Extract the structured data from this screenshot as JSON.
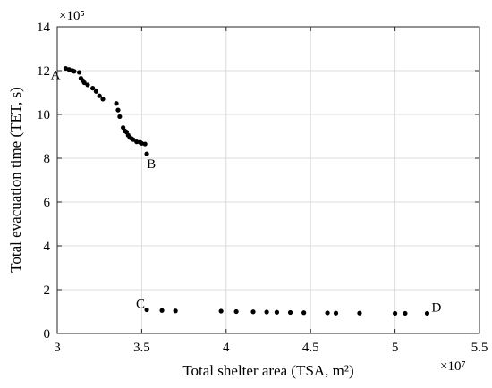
{
  "chart_data": {
    "type": "scatter",
    "title": "",
    "xlabel": "Total shelter area (TSA, m²)",
    "ylabel": "Total evacuation time (TET, s)",
    "x_exponent_label": "×10⁷",
    "y_exponent_label": "×10⁵",
    "x_multiplier": 10000000,
    "y_multiplier": 100000,
    "xlim": [
      3,
      5.5
    ],
    "ylim": [
      0,
      14
    ],
    "x_ticks": [
      3,
      3.5,
      4,
      4.5,
      5,
      5.5
    ],
    "x_tick_labels": [
      "3",
      "3.5",
      "4",
      "4.5",
      "5",
      "5.5"
    ],
    "y_ticks": [
      0,
      2,
      4,
      6,
      8,
      10,
      12,
      14
    ],
    "y_tick_labels": [
      "0",
      "2",
      "4",
      "6",
      "8",
      "10",
      "12",
      "14"
    ],
    "grid": true,
    "series": [
      {
        "points": [
          [
            3.05,
            12.1
          ],
          [
            3.07,
            12.05
          ],
          [
            3.09,
            12.0
          ],
          [
            3.1,
            11.97
          ],
          [
            3.13,
            11.92
          ],
          [
            3.14,
            11.65
          ],
          [
            3.15,
            11.55
          ],
          [
            3.16,
            11.45
          ],
          [
            3.18,
            11.35
          ],
          [
            3.21,
            11.2
          ],
          [
            3.23,
            11.05
          ],
          [
            3.25,
            10.85
          ],
          [
            3.27,
            10.7
          ],
          [
            3.35,
            10.5
          ],
          [
            3.36,
            10.2
          ],
          [
            3.37,
            9.9
          ],
          [
            3.39,
            9.4
          ],
          [
            3.4,
            9.25
          ],
          [
            3.41,
            9.2
          ],
          [
            3.42,
            9.05
          ],
          [
            3.43,
            8.95
          ],
          [
            3.44,
            8.9
          ],
          [
            3.45,
            8.85
          ],
          [
            3.47,
            8.75
          ],
          [
            3.49,
            8.73
          ],
          [
            3.5,
            8.68
          ],
          [
            3.52,
            8.65
          ],
          [
            3.53,
            8.2
          ],
          [
            3.53,
            1.08
          ],
          [
            3.62,
            1.05
          ],
          [
            3.7,
            1.03
          ],
          [
            3.97,
            1.02
          ],
          [
            4.06,
            1.0
          ],
          [
            4.16,
            0.99
          ],
          [
            4.24,
            0.98
          ],
          [
            4.3,
            0.97
          ],
          [
            4.38,
            0.96
          ],
          [
            4.46,
            0.95
          ],
          [
            4.6,
            0.94
          ],
          [
            4.65,
            0.93
          ],
          [
            4.79,
            0.93
          ],
          [
            5.0,
            0.92
          ],
          [
            5.06,
            0.92
          ],
          [
            5.19,
            0.92
          ]
        ]
      }
    ],
    "annotations": [
      {
        "text": "A",
        "x": 3.05,
        "y": 12.1
      },
      {
        "text": "B",
        "x": 3.53,
        "y": 8.2
      },
      {
        "text": "C",
        "x": 3.53,
        "y": 1.08
      },
      {
        "text": "D",
        "x": 5.19,
        "y": 0.92
      }
    ]
  }
}
